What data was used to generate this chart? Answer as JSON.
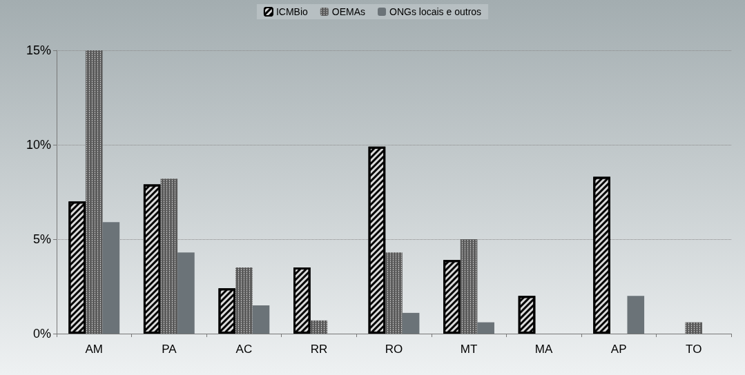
{
  "chart_data": {
    "type": "bar",
    "categories": [
      "AM",
      "PA",
      "AC",
      "RR",
      "RO",
      "MT",
      "MA",
      "AP",
      "TO"
    ],
    "series": [
      {
        "name": "ICMBio",
        "color": "#d9d9d9",
        "values": [
          7.0,
          7.9,
          2.4,
          3.5,
          9.9,
          3.9,
          2.0,
          8.3,
          0
        ]
      },
      {
        "name": "OEMAs",
        "color": "#5a5a5a",
        "values": [
          15,
          8.2,
          3.5,
          0.7,
          4.3,
          5.0,
          0,
          0,
          0.6
        ]
      },
      {
        "name": "ONGs locais e outros",
        "color": "#6b7378",
        "values": [
          5.9,
          4.3,
          1.5,
          0,
          1.1,
          0.6,
          0,
          2.0,
          0
        ]
      }
    ],
    "ylim": [
      0,
      15
    ],
    "yticks": [
      {
        "value": 0,
        "label": "0%"
      },
      {
        "value": 5,
        "label": "5%"
      },
      {
        "value": 10,
        "label": "10%"
      },
      {
        "value": 15,
        "label": "15%"
      }
    ],
    "grid": "y",
    "legend": "top"
  }
}
